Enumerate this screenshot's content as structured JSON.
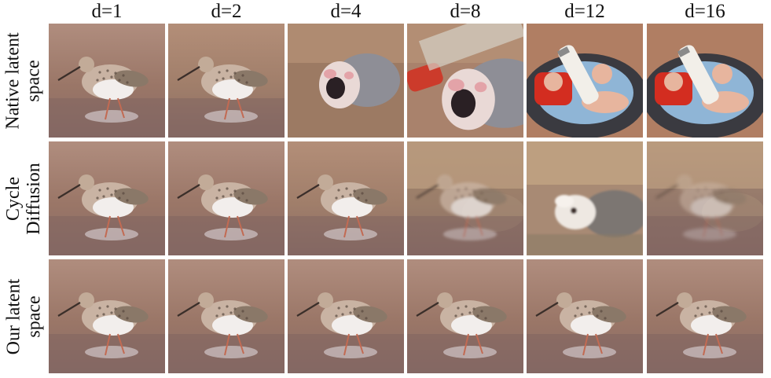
{
  "figure": {
    "columns": [
      "d=1",
      "d=2",
      "d=4",
      "d=8",
      "d=12",
      "d=16"
    ],
    "rows": [
      {
        "label_lines": [
          "Native latent",
          "space"
        ],
        "tiles": [
          "bird",
          "bird-light",
          "monkey",
          "monkey-close",
          "baby-bottle",
          "baby-bottle"
        ]
      },
      {
        "label_lines": [
          "Cycle",
          "Diffusion"
        ],
        "tiles": [
          "bird",
          "bird",
          "bird-light",
          "bird-blur",
          "goat-blur",
          "bird-ghost"
        ]
      },
      {
        "label_lines": [
          "Our latent",
          "space"
        ],
        "tiles": [
          "bird",
          "bird",
          "bird",
          "bird",
          "bird",
          "bird"
        ]
      }
    ]
  }
}
